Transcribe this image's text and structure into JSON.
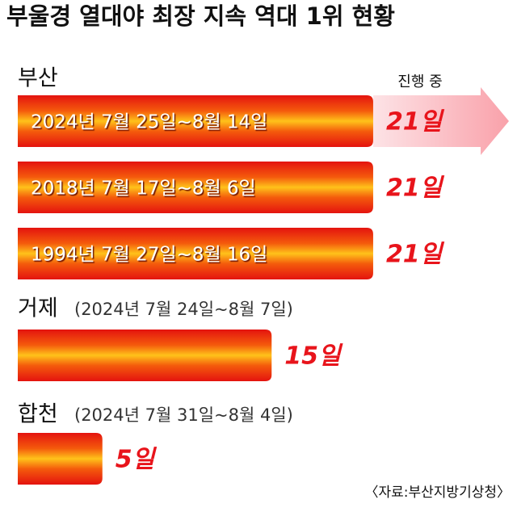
{
  "chart_data": {
    "type": "bar",
    "orientation": "horizontal",
    "title": "부울경 열대야 최장 지속 역대 1위 현황",
    "region_labels": [
      "부산",
      null,
      null,
      "거제",
      "합천"
    ],
    "categories": [
      "2024년 7월 25일~8월 14일",
      "2018년 7월 17일~8월 6일",
      "1994년 7월 27일~8월 16일",
      "(2024년 7월 24일~8월 7일)",
      "(2024년 7월 31일~8월 4일)"
    ],
    "values": [
      21,
      21,
      21,
      15,
      5
    ],
    "value_labels": [
      "21일",
      "21일",
      "21일",
      "15일",
      "5일"
    ],
    "annotation": "진행 중",
    "source": "〈자료:부산지방기상청〉",
    "color": "#e8141b"
  }
}
